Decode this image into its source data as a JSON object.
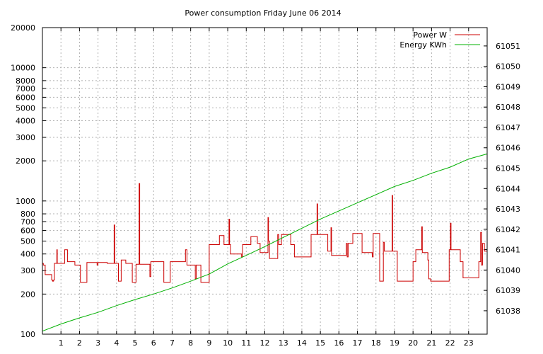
{
  "chart_data": {
    "type": "line",
    "title": "Power consumption Friday June 06 2014",
    "x_ticks": [
      1,
      2,
      3,
      4,
      5,
      6,
      7,
      8,
      9,
      10,
      11,
      12,
      13,
      14,
      15,
      16,
      17,
      18,
      19,
      20,
      21,
      22,
      23
    ],
    "x_range": [
      0,
      24
    ],
    "y_left": {
      "scale": "log",
      "range": [
        100,
        20000
      ],
      "ticks": [
        100,
        200,
        300,
        400,
        500,
        600,
        700,
        800,
        1000,
        2000,
        3000,
        4000,
        5000,
        6000,
        7000,
        8000,
        10000,
        20000
      ]
    },
    "y_right": {
      "scale": "linear",
      "range": [
        61036.85,
        61051.9
      ],
      "ticks": [
        61038,
        61039,
        61040,
        61041,
        61042,
        61043,
        61044,
        61045,
        61046,
        61047,
        61048,
        61049,
        61050,
        61051
      ]
    },
    "grid": true,
    "legend_position": "top-right",
    "colors": {
      "power": "#cc0000",
      "energy": "#00b000",
      "grid": "#b0b0b0"
    },
    "series": [
      {
        "name": "Power W",
        "axis": "left",
        "color": "#cc0000",
        "points": [
          [
            0,
            340
          ],
          [
            0.05,
            330
          ],
          [
            0.15,
            280
          ],
          [
            0.4,
            280
          ],
          [
            0.5,
            255
          ],
          [
            0.55,
            250
          ],
          [
            0.6,
            255
          ],
          [
            0.65,
            340
          ],
          [
            0.75,
            340
          ],
          [
            0.78,
            430
          ],
          [
            0.8,
            340
          ],
          [
            1.1,
            340
          ],
          [
            1.2,
            430
          ],
          [
            1.3,
            430
          ],
          [
            1.35,
            350
          ],
          [
            1.65,
            350
          ],
          [
            1.75,
            330
          ],
          [
            1.95,
            330
          ],
          [
            2.05,
            245
          ],
          [
            2.35,
            245
          ],
          [
            2.4,
            345
          ],
          [
            2.9,
            345
          ],
          [
            2.95,
            330
          ],
          [
            3.0,
            345
          ],
          [
            3.45,
            345
          ],
          [
            3.5,
            340
          ],
          [
            3.85,
            340
          ],
          [
            3.87,
            660
          ],
          [
            3.9,
            340
          ],
          [
            4.05,
            340
          ],
          [
            4.1,
            250
          ],
          [
            4.2,
            250
          ],
          [
            4.25,
            360
          ],
          [
            4.45,
            360
          ],
          [
            4.5,
            340
          ],
          [
            4.8,
            340
          ],
          [
            4.85,
            245
          ],
          [
            5.0,
            245
          ],
          [
            5.05,
            335
          ],
          [
            5.2,
            335
          ],
          [
            5.22,
            1350
          ],
          [
            5.25,
            335
          ],
          [
            5.75,
            335
          ],
          [
            5.8,
            270
          ],
          [
            5.85,
            350
          ],
          [
            6.5,
            350
          ],
          [
            6.55,
            245
          ],
          [
            6.85,
            245
          ],
          [
            6.9,
            350
          ],
          [
            7.7,
            350
          ],
          [
            7.72,
            430
          ],
          [
            7.8,
            330
          ],
          [
            8.2,
            330
          ],
          [
            8.25,
            260
          ],
          [
            8.3,
            330
          ],
          [
            8.5,
            330
          ],
          [
            8.55,
            245
          ],
          [
            8.95,
            245
          ],
          [
            9.0,
            470
          ],
          [
            9.5,
            470
          ],
          [
            9.55,
            550
          ],
          [
            9.75,
            550
          ],
          [
            9.8,
            470
          ],
          [
            10.05,
            470
          ],
          [
            10.07,
            730
          ],
          [
            10.1,
            470
          ],
          [
            10.15,
            400
          ],
          [
            10.7,
            400
          ],
          [
            10.75,
            380
          ],
          [
            10.8,
            470
          ],
          [
            11.2,
            470
          ],
          [
            11.25,
            540
          ],
          [
            11.55,
            540
          ],
          [
            11.6,
            480
          ],
          [
            11.7,
            480
          ],
          [
            11.75,
            410
          ],
          [
            12.15,
            410
          ],
          [
            12.17,
            750
          ],
          [
            12.2,
            500
          ],
          [
            12.25,
            370
          ],
          [
            12.65,
            370
          ],
          [
            12.7,
            560
          ],
          [
            12.75,
            470
          ],
          [
            12.85,
            470
          ],
          [
            12.9,
            560
          ],
          [
            13.35,
            560
          ],
          [
            13.4,
            470
          ],
          [
            13.55,
            470
          ],
          [
            13.6,
            380
          ],
          [
            14.45,
            380
          ],
          [
            14.5,
            560
          ],
          [
            14.8,
            560
          ],
          [
            14.82,
            950
          ],
          [
            14.85,
            560
          ],
          [
            15.35,
            560
          ],
          [
            15.4,
            420
          ],
          [
            15.55,
            420
          ],
          [
            15.57,
            630
          ],
          [
            15.6,
            390
          ],
          [
            16.35,
            390
          ],
          [
            16.4,
            480
          ],
          [
            16.45,
            380
          ],
          [
            16.5,
            480
          ],
          [
            16.7,
            480
          ],
          [
            16.75,
            570
          ],
          [
            17.2,
            570
          ],
          [
            17.25,
            410
          ],
          [
            17.75,
            410
          ],
          [
            17.8,
            380
          ],
          [
            17.85,
            570
          ],
          [
            18.15,
            570
          ],
          [
            18.2,
            250
          ],
          [
            18.35,
            250
          ],
          [
            18.4,
            490
          ],
          [
            18.45,
            420
          ],
          [
            18.85,
            420
          ],
          [
            18.87,
            1100
          ],
          [
            18.9,
            420
          ],
          [
            19.05,
            420
          ],
          [
            19.15,
            250
          ],
          [
            19.95,
            250
          ],
          [
            20.0,
            350
          ],
          [
            20.15,
            430
          ],
          [
            20.45,
            430
          ],
          [
            20.47,
            640
          ],
          [
            20.5,
            410
          ],
          [
            20.75,
            410
          ],
          [
            20.8,
            360
          ],
          [
            20.85,
            260
          ],
          [
            20.95,
            250
          ],
          [
            21.9,
            250
          ],
          [
            21.95,
            430
          ],
          [
            22.0,
            430
          ],
          [
            22.02,
            680
          ],
          [
            22.05,
            430
          ],
          [
            22.5,
            430
          ],
          [
            22.55,
            350
          ],
          [
            22.65,
            350
          ],
          [
            22.7,
            265
          ],
          [
            23.5,
            265
          ],
          [
            23.55,
            350
          ],
          [
            23.6,
            350
          ],
          [
            23.65,
            580
          ],
          [
            23.7,
            330
          ],
          [
            23.75,
            480
          ],
          [
            23.85,
            420
          ],
          [
            24.0,
            420
          ]
        ]
      },
      {
        "name": "Energy KWh",
        "axis": "right",
        "color": "#00b000",
        "points": [
          [
            0,
            61037.0
          ],
          [
            1,
            61037.35
          ],
          [
            2,
            61037.65
          ],
          [
            3,
            61037.92
          ],
          [
            4,
            61038.25
          ],
          [
            5,
            61038.55
          ],
          [
            6,
            61038.82
          ],
          [
            7,
            61039.12
          ],
          [
            8,
            61039.45
          ],
          [
            9,
            61039.8
          ],
          [
            10,
            61040.3
          ],
          [
            11,
            61040.72
          ],
          [
            12,
            61041.15
          ],
          [
            13,
            61041.6
          ],
          [
            14,
            61042.05
          ],
          [
            15,
            61042.5
          ],
          [
            16,
            61042.9
          ],
          [
            17,
            61043.3
          ],
          [
            18,
            61043.7
          ],
          [
            19,
            61044.1
          ],
          [
            20,
            61044.4
          ],
          [
            21,
            61044.75
          ],
          [
            22,
            61045.05
          ],
          [
            23,
            61045.45
          ],
          [
            24,
            61045.7
          ]
        ]
      }
    ]
  }
}
